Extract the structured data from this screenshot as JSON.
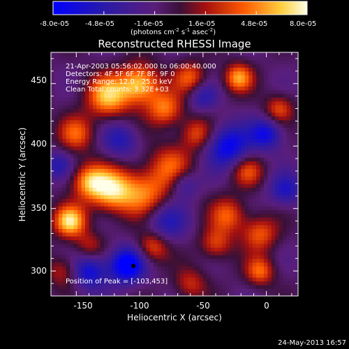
{
  "colorbar": {
    "tick_labels": [
      "-8.0e-05",
      "-4.8e-05",
      "-1.6e-05",
      "1.6e-05",
      "4.8e-05",
      "8.0e-05"
    ],
    "unit_label": "(photons cm",
    "unit_exp1": "-2",
    "unit_mid": " s",
    "unit_exp2": "-1",
    "unit_end": " asec",
    "unit_exp3": "-2",
    "unit_close": ")",
    "range": [
      -8e-05,
      8e-05
    ]
  },
  "chart_data": {
    "type": "heatmap",
    "title": "Reconstructed RHESSI Image",
    "xlabel": "Heliocentric X (arcsec)",
    "ylabel": "Heliocentric Y (arcsec)",
    "xlim": [
      -170,
      25
    ],
    "ylim": [
      280,
      475
    ],
    "xticks": [
      -150,
      -100,
      -50,
      0
    ],
    "yticks": [
      300,
      350,
      400,
      450
    ],
    "annotation_lines": [
      "21-Apr-2003 05:56:02.000 to 06:00:40.000",
      "Detectors: 4F 5F 6F 7F 8F, 9F 0",
      "Energy Range: 12.0 - 25.0 keV",
      "Clean     Total counts: 3.32E+03"
    ],
    "peak_label": "Position of Peak = [-103,453]",
    "peak_position": [
      -103,
      453
    ],
    "min_marker": [
      -105,
      304
    ],
    "blobs": [
      {
        "x": -155,
        "y": 340,
        "v": 1.0,
        "w": 9
      },
      {
        "x": -122,
        "y": 365,
        "v": 0.95,
        "w": 12
      },
      {
        "x": -95,
        "y": 362,
        "v": 0.7,
        "w": 14
      },
      {
        "x": -140,
        "y": 372,
        "v": 0.75,
        "w": 10
      },
      {
        "x": -125,
        "y": 440,
        "v": 0.9,
        "w": 12
      },
      {
        "x": -100,
        "y": 450,
        "v": 0.95,
        "w": 11
      },
      {
        "x": -80,
        "y": 430,
        "v": 0.7,
        "w": 10
      },
      {
        "x": -150,
        "y": 410,
        "v": 0.6,
        "w": 10
      },
      {
        "x": -75,
        "y": 385,
        "v": 0.55,
        "w": 12
      },
      {
        "x": -30,
        "y": 345,
        "v": 0.6,
        "w": 10
      },
      {
        "x": -15,
        "y": 380,
        "v": 0.55,
        "w": 9
      },
      {
        "x": -5,
        "y": 330,
        "v": 0.6,
        "w": 10
      },
      {
        "x": -40,
        "y": 322,
        "v": 0.55,
        "w": 9
      },
      {
        "x": -90,
        "y": 320,
        "v": 0.65,
        "w": 9
      },
      {
        "x": -55,
        "y": 410,
        "v": 0.55,
        "w": 9
      },
      {
        "x": -22,
        "y": 455,
        "v": 0.8,
        "w": 8
      },
      {
        "x": 10,
        "y": 430,
        "v": 0.55,
        "w": 8
      },
      {
        "x": -160,
        "y": 300,
        "v": 0.45,
        "w": 9
      },
      {
        "x": -5,
        "y": 300,
        "v": 0.65,
        "w": 8
      },
      {
        "x": -60,
        "y": 290,
        "v": 0.45,
        "w": 9
      },
      {
        "x": -140,
        "y": 320,
        "v": 0.4,
        "w": 8
      },
      {
        "x": -60,
        "y": 455,
        "v": 0.6,
        "w": 9
      },
      {
        "x": -110,
        "y": 305,
        "v": -1.0,
        "w": 10
      },
      {
        "x": -30,
        "y": 400,
        "v": -0.8,
        "w": 12
      },
      {
        "x": 0,
        "y": 410,
        "v": -0.7,
        "w": 9
      },
      {
        "x": -80,
        "y": 340,
        "v": -0.55,
        "w": 12
      },
      {
        "x": -140,
        "y": 300,
        "v": -0.7,
        "w": 10
      },
      {
        "x": -115,
        "y": 405,
        "v": -0.5,
        "w": 10
      },
      {
        "x": -165,
        "y": 385,
        "v": -0.45,
        "w": 8
      },
      {
        "x": -50,
        "y": 440,
        "v": -0.45,
        "w": 8
      },
      {
        "x": 15,
        "y": 365,
        "v": -0.55,
        "w": 9
      },
      {
        "x": -65,
        "y": 370,
        "v": -0.45,
        "w": 8
      }
    ]
  },
  "footer": {
    "date": "24-May-2013 16:57"
  }
}
